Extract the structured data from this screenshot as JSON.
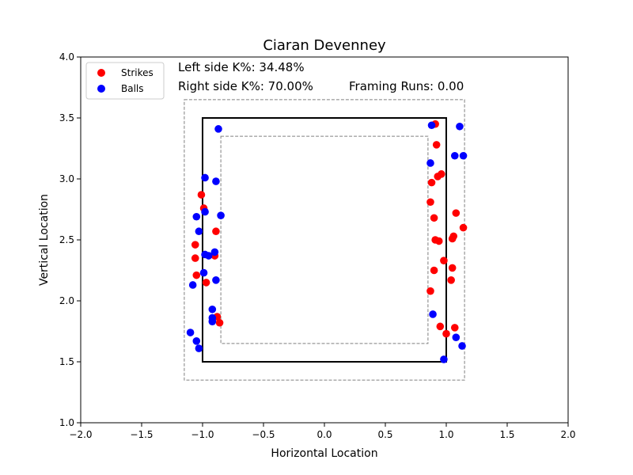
{
  "chart_data": {
    "type": "scatter",
    "title": "Ciaran Devenney",
    "xlabel": "Horizontal Location",
    "ylabel": "Vertical Location",
    "xlim": [
      -2.0,
      2.0
    ],
    "ylim": [
      1.0,
      4.0
    ],
    "xticks": [
      -2.0,
      -1.5,
      -1.0,
      -0.5,
      0.0,
      0.5,
      1.0,
      1.5,
      2.0
    ],
    "xtick_labels": [
      "−2.0",
      "−1.5",
      "−1.0",
      "−0.5",
      "0.0",
      "0.5",
      "1.0",
      "1.5",
      "2.0"
    ],
    "yticks": [
      1.0,
      1.5,
      2.0,
      2.5,
      3.0,
      3.5,
      4.0
    ],
    "ytick_labels": [
      "1.0",
      "1.5",
      "2.0",
      "2.5",
      "3.0",
      "3.5",
      "4.0"
    ],
    "grid": false,
    "legend_position": "top-left",
    "annotations": {
      "left_k": "Left side K%: 34.48%",
      "right_k": "Right side K%: 70.00%",
      "framing": "Framing Runs: 0.00"
    },
    "zones": {
      "strike_zone": {
        "x": [
          -1.0,
          1.0
        ],
        "y": [
          1.5,
          3.5
        ],
        "color": "#000000",
        "style": "solid"
      },
      "outer_zone": {
        "x": [
          -1.15,
          1.15
        ],
        "y": [
          1.35,
          3.65
        ],
        "color": "#808080",
        "style": "dashed"
      },
      "inner_zone": {
        "x": [
          -0.85,
          0.85
        ],
        "y": [
          1.65,
          3.35
        ],
        "color": "#808080",
        "style": "dashed"
      }
    },
    "series": [
      {
        "name": "Strikes",
        "color": "#ff0000",
        "points": [
          [
            -1.01,
            2.87
          ],
          [
            -0.99,
            2.76
          ],
          [
            -0.89,
            2.57
          ],
          [
            -1.06,
            2.46
          ],
          [
            -1.06,
            2.35
          ],
          [
            -0.9,
            2.37
          ],
          [
            -1.05,
            2.21
          ],
          [
            -0.97,
            2.15
          ],
          [
            -0.88,
            1.87
          ],
          [
            -0.86,
            1.82
          ],
          [
            0.91,
            3.45
          ],
          [
            0.92,
            3.28
          ],
          [
            0.93,
            3.02
          ],
          [
            0.96,
            3.04
          ],
          [
            0.88,
            2.97
          ],
          [
            0.87,
            2.81
          ],
          [
            1.08,
            2.72
          ],
          [
            0.9,
            2.68
          ],
          [
            1.14,
            2.6
          ],
          [
            1.06,
            2.53
          ],
          [
            1.05,
            2.51
          ],
          [
            0.91,
            2.5
          ],
          [
            0.94,
            2.49
          ],
          [
            0.98,
            2.33
          ],
          [
            1.05,
            2.27
          ],
          [
            0.9,
            2.25
          ],
          [
            1.04,
            2.17
          ],
          [
            0.87,
            2.08
          ],
          [
            0.95,
            1.79
          ],
          [
            1.07,
            1.78
          ],
          [
            1.0,
            1.73
          ]
        ]
      },
      {
        "name": "Balls",
        "color": "#0000ff",
        "points": [
          [
            -0.87,
            3.41
          ],
          [
            -0.98,
            3.01
          ],
          [
            -0.89,
            2.98
          ],
          [
            -0.98,
            2.73
          ],
          [
            -0.85,
            2.7
          ],
          [
            -1.05,
            2.69
          ],
          [
            -1.03,
            2.57
          ],
          [
            -0.98,
            2.38
          ],
          [
            -0.9,
            2.4
          ],
          [
            -0.95,
            2.37
          ],
          [
            -0.99,
            2.23
          ],
          [
            -0.89,
            2.17
          ],
          [
            -1.08,
            2.13
          ],
          [
            -0.92,
            1.93
          ],
          [
            -0.92,
            1.86
          ],
          [
            -0.92,
            1.83
          ],
          [
            -1.1,
            1.74
          ],
          [
            -1.05,
            1.67
          ],
          [
            -1.03,
            1.61
          ],
          [
            0.88,
            3.44
          ],
          [
            1.11,
            3.43
          ],
          [
            1.07,
            3.19
          ],
          [
            1.14,
            3.19
          ],
          [
            0.87,
            3.13
          ],
          [
            0.89,
            1.89
          ],
          [
            1.08,
            1.7
          ],
          [
            1.13,
            1.63
          ],
          [
            0.98,
            1.52
          ]
        ]
      }
    ]
  }
}
